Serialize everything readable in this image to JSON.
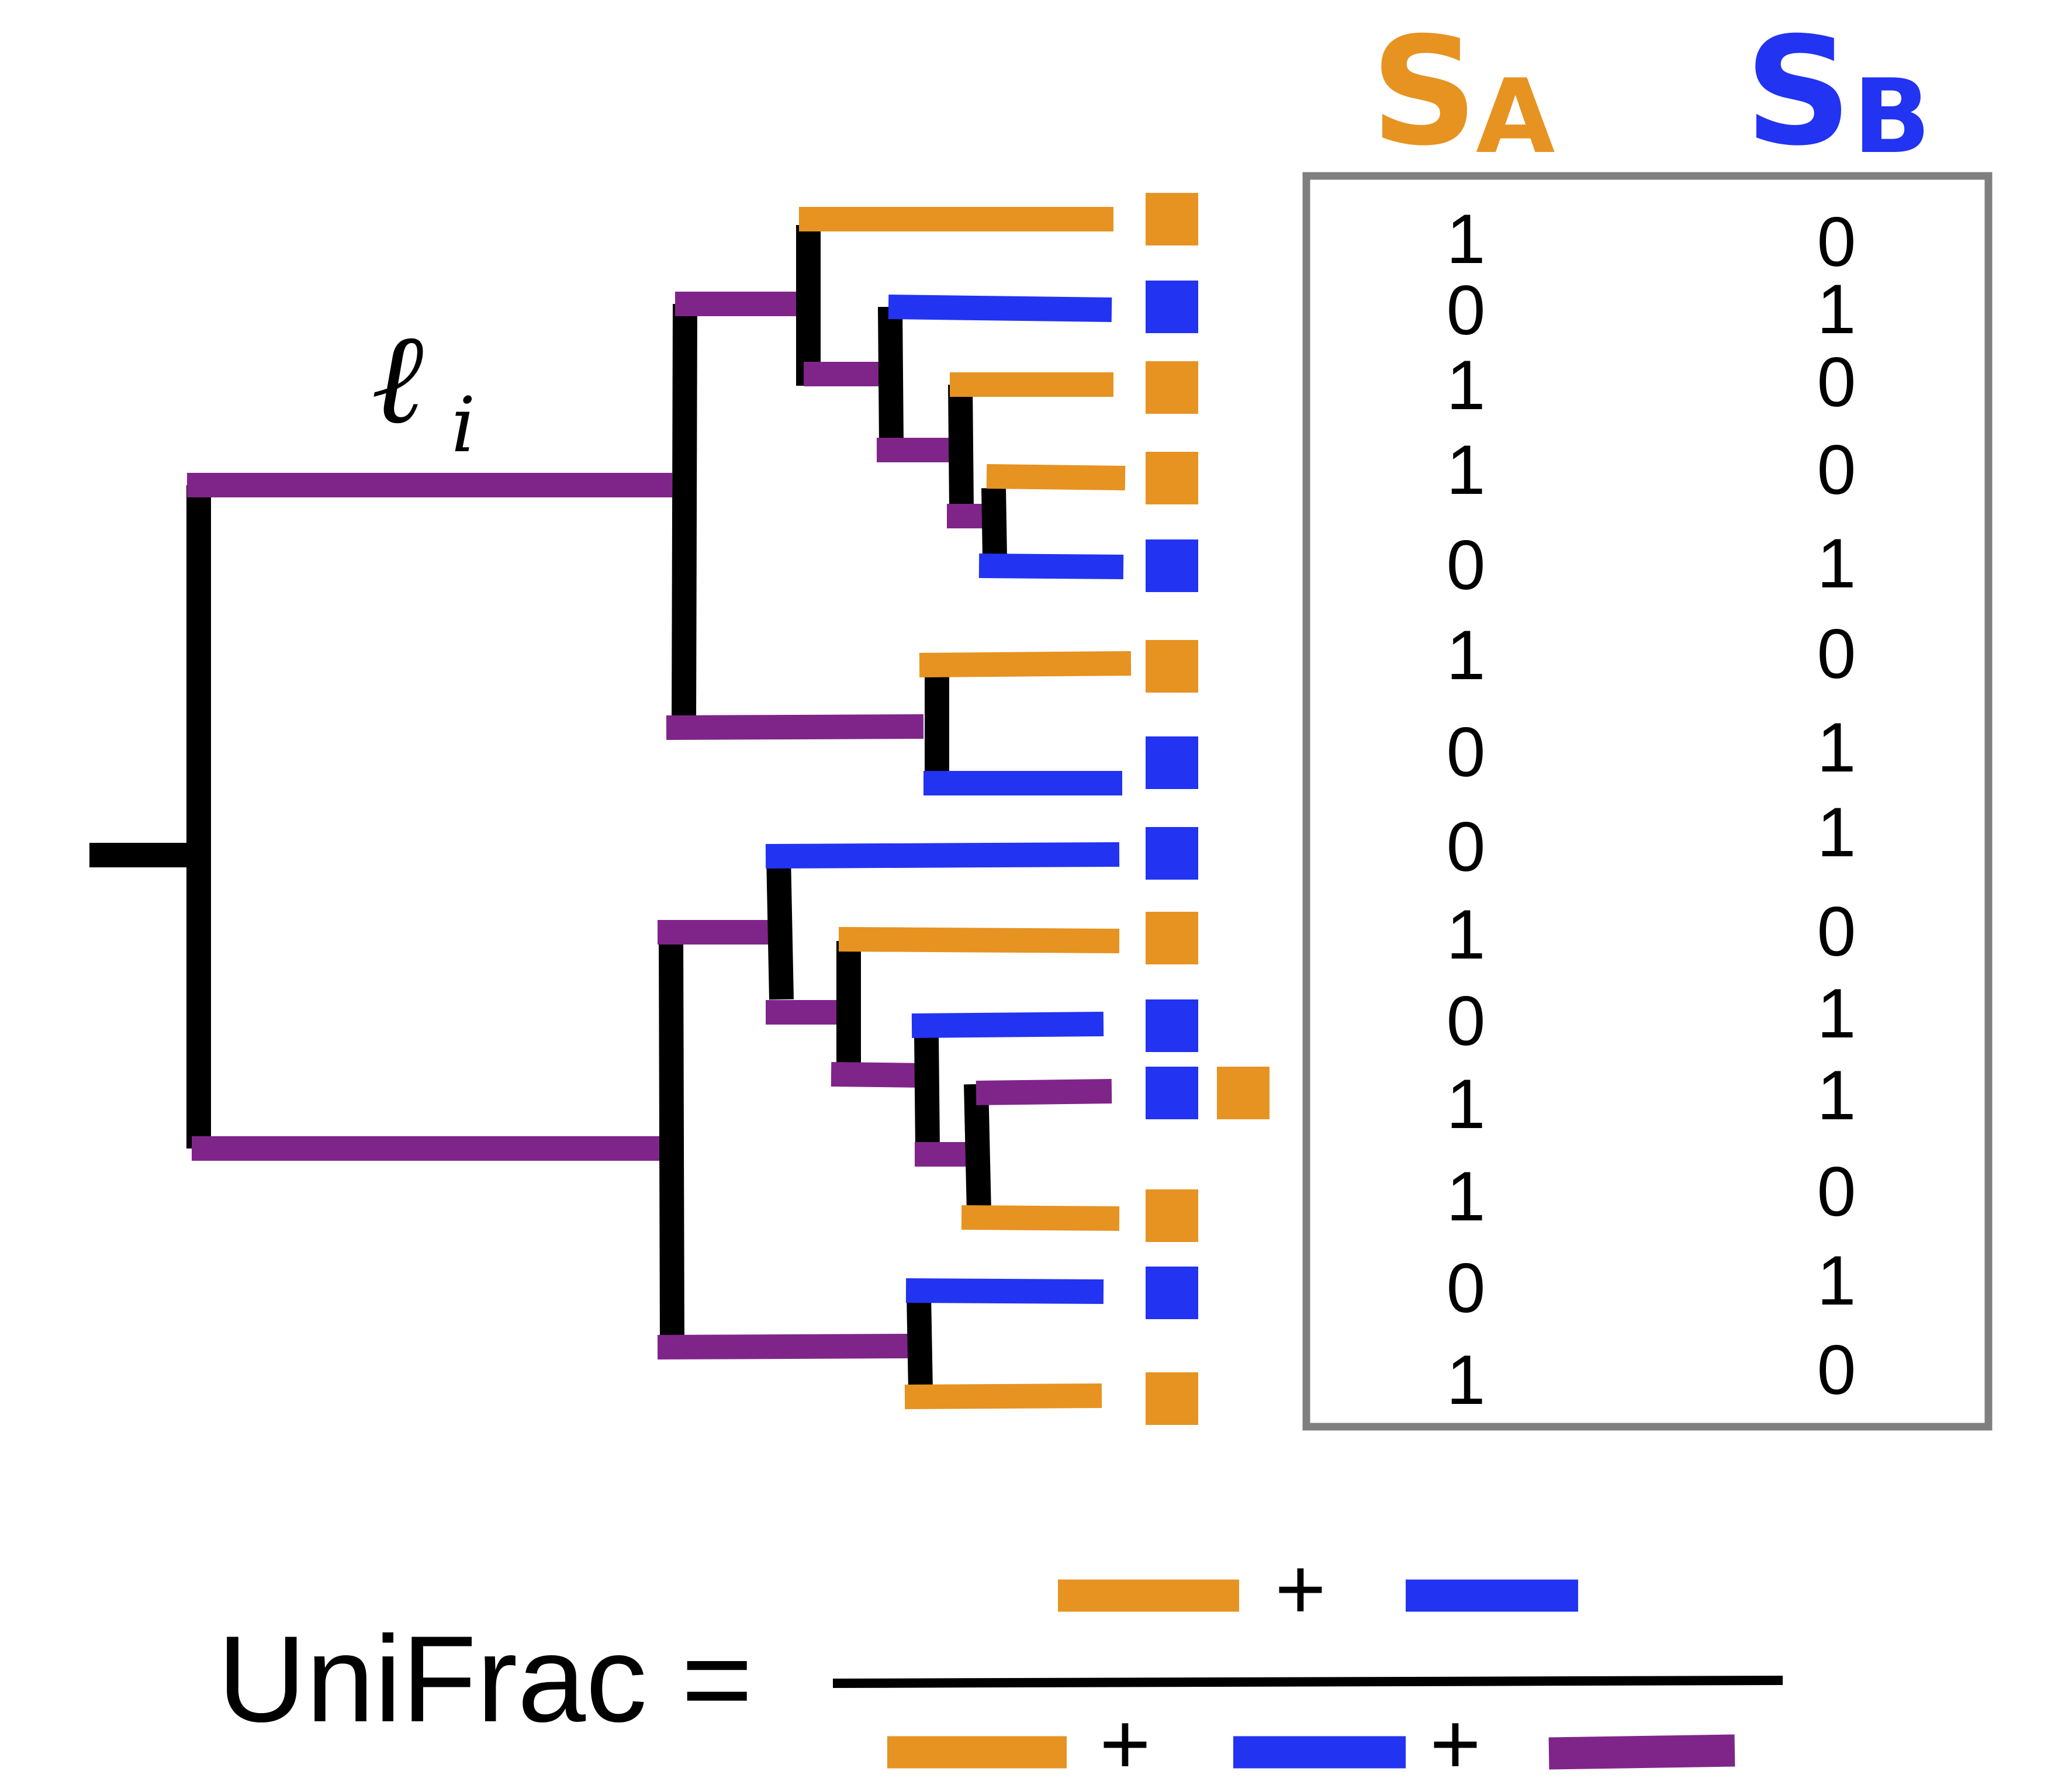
{
  "colors": {
    "sample_a": "#E69322",
    "sample_b": "#2233F2",
    "shared": "#7F2589",
    "tree": "#000000",
    "table_border": "#7F7F7F"
  },
  "branch_label": {
    "symbol": "ℓ",
    "subscript": "i"
  },
  "table": {
    "header_a": {
      "letter": "S",
      "subscript": "A"
    },
    "header_b": {
      "letter": "S",
      "subscript": "B"
    },
    "rows": [
      {
        "a": "1",
        "b": "0"
      },
      {
        "a": "0",
        "b": "1"
      },
      {
        "a": "1",
        "b": "0"
      },
      {
        "a": "1",
        "b": "0"
      },
      {
        "a": "0",
        "b": "1"
      },
      {
        "a": "1",
        "b": "0"
      },
      {
        "a": "0",
        "b": "1"
      },
      {
        "a": "0",
        "b": "1"
      },
      {
        "a": "1",
        "b": "0"
      },
      {
        "a": "0",
        "b": "1"
      },
      {
        "a": "1",
        "b": "1"
      },
      {
        "a": "1",
        "b": "0"
      },
      {
        "a": "0",
        "b": "1"
      },
      {
        "a": "1",
        "b": "0"
      }
    ]
  },
  "leaves": [
    {
      "samples": [
        "orange"
      ]
    },
    {
      "samples": [
        "blue"
      ]
    },
    {
      "samples": [
        "orange"
      ]
    },
    {
      "samples": [
        "orange"
      ]
    },
    {
      "samples": [
        "blue"
      ]
    },
    {
      "samples": [
        "orange"
      ]
    },
    {
      "samples": [
        "blue"
      ]
    },
    {
      "samples": [
        "blue"
      ]
    },
    {
      "samples": [
        "orange"
      ]
    },
    {
      "samples": [
        "blue"
      ]
    },
    {
      "samples": [
        "blue",
        "orange"
      ]
    },
    {
      "samples": [
        "orange"
      ]
    },
    {
      "samples": [
        "blue"
      ]
    },
    {
      "samples": [
        "orange"
      ]
    }
  ],
  "formula": {
    "label": "UniFrac =",
    "plus": "+"
  }
}
